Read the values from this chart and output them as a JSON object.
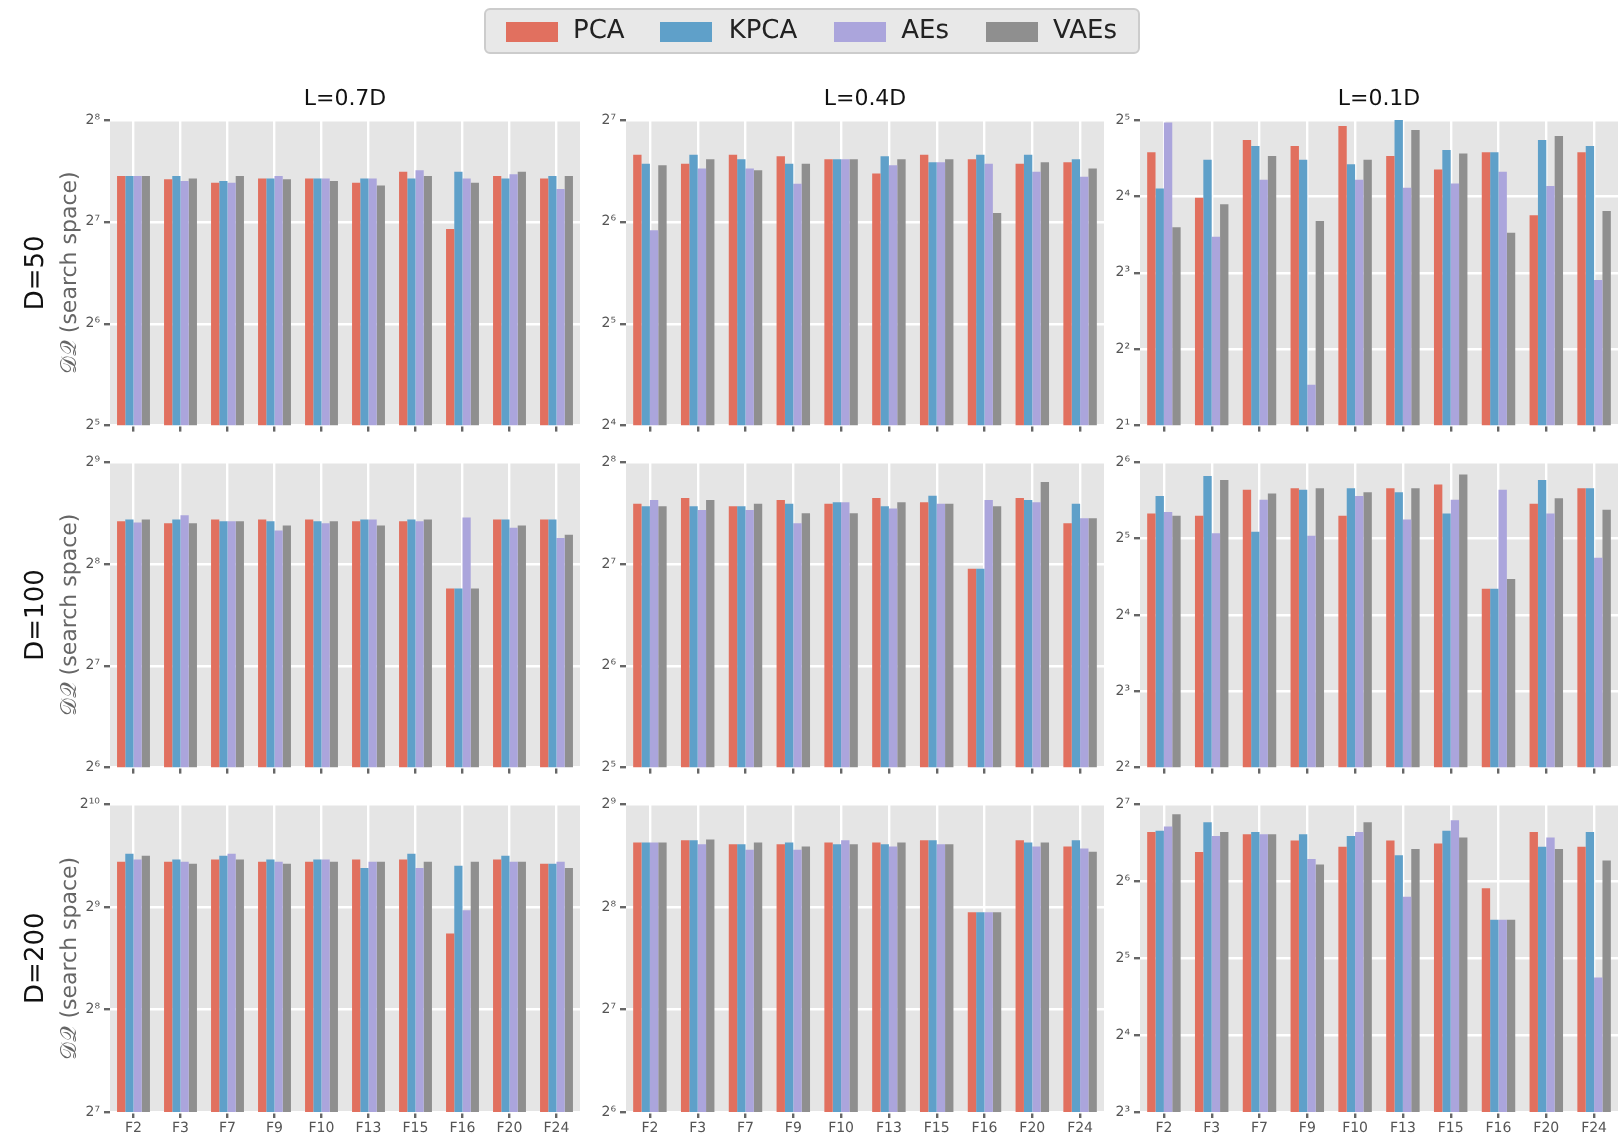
{
  "chart_data": [
    {
      "type": "bar",
      "title": "L=0.7D",
      "ylabel": "D=50\n𝒟𝒬 (search space)",
      "log": "y",
      "grid": true,
      "legend": "top",
      "tick_labels": "y",
      "ylim": [
        32,
        256
      ],
      "yticks": [
        {
          "value": 32,
          "label": "2⁵"
        },
        {
          "value": 64,
          "label": "2⁶"
        },
        {
          "value": 128,
          "label": "2⁷"
        },
        {
          "value": 256,
          "label": "2⁸"
        }
      ],
      "categories": [
        null,
        null,
        null,
        null,
        null,
        null,
        null,
        null,
        null,
        null
      ],
      "series": [
        {
          "name": "PCA",
          "color": "#e1705f",
          "values": [
            175,
            171,
            167,
            172,
            172,
            167,
            180,
            122,
            175,
            172
          ]
        },
        {
          "name": "KPCA",
          "color": "#5fa0c9",
          "values": [
            175,
            175,
            169,
            172,
            172,
            172,
            172,
            180,
            172,
            175
          ]
        },
        {
          "name": "AEs",
          "color": "#aba5dc",
          "values": [
            175,
            169,
            167,
            175,
            172,
            172,
            182,
            172,
            177,
            160
          ]
        },
        {
          "name": "VAEs",
          "color": "#8f8f8f",
          "values": [
            175,
            172,
            175,
            171,
            169,
            164,
            175,
            167,
            180,
            175
          ]
        }
      ]
    },
    {
      "type": "bar",
      "title": "L=0.4D",
      "log": "y",
      "grid": true,
      "tick_labels": "y",
      "ylim": [
        16,
        128
      ],
      "yticks": [
        {
          "value": 16,
          "label": "2⁴"
        },
        {
          "value": 32,
          "label": "2⁵"
        },
        {
          "value": 64,
          "label": "2⁶"
        },
        {
          "value": 128,
          "label": "2⁷"
        }
      ],
      "categories": [
        null,
        null,
        null,
        null,
        null,
        null,
        null,
        null,
        null,
        null
      ],
      "series": [
        {
          "color": "#e1705f",
          "values": [
            101,
            95,
            101,
            100,
            98,
            89,
            101,
            98,
            95,
            96
          ]
        },
        {
          "color": "#5fa0c9",
          "values": [
            95,
            101,
            98,
            95,
            98,
            100,
            96,
            101,
            101,
            98
          ]
        },
        {
          "color": "#aba5dc",
          "values": [
            60.5,
            92,
            92,
            83,
            98,
            94,
            96,
            95,
            90,
            87
          ]
        },
        {
          "color": "#8f8f8f",
          "values": [
            94,
            98,
            91,
            95,
            98,
            98,
            98,
            68,
            96,
            92
          ]
        }
      ]
    },
    {
      "type": "bar",
      "title": "L=0.1D",
      "log": "y",
      "grid": true,
      "tick_labels": "y",
      "ylim": [
        2,
        32
      ],
      "yticks": [
        {
          "value": 2,
          "label": "2¹"
        },
        {
          "value": 4,
          "label": "2²"
        },
        {
          "value": 8,
          "label": "2³"
        },
        {
          "value": 16,
          "label": "2⁴"
        },
        {
          "value": 32,
          "label": "2⁵"
        }
      ],
      "categories": [
        null,
        null,
        null,
        null,
        null,
        null,
        null,
        null,
        null,
        null
      ],
      "series": [
        {
          "color": "#e1705f",
          "values": [
            23.9,
            15.8,
            26.7,
            25.3,
            30.3,
            23.1,
            20.4,
            23.9,
            13.5,
            23.9
          ]
        },
        {
          "color": "#5fa0c9",
          "values": [
            17.2,
            22.3,
            25.3,
            22.3,
            21.4,
            32,
            24.4,
            23.9,
            26.7,
            25.3
          ]
        },
        {
          "color": "#aba5dc",
          "values": [
            31.3,
            11.1,
            18.6,
            2.9,
            18.6,
            17.3,
            18.0,
            20.0,
            17.6,
            7.5
          ]
        },
        {
          "color": "#8f8f8f",
          "values": [
            12.1,
            14.9,
            23.1,
            12.8,
            22.3,
            29.2,
            23.6,
            11.5,
            27.7,
            14.0
          ]
        }
      ]
    },
    {
      "type": "bar",
      "ylabel": "D=100\n𝒟𝒬 (search space)",
      "log": "y",
      "grid": true,
      "tick_labels": "y",
      "ylim": [
        64,
        512
      ],
      "yticks": [
        {
          "value": 64,
          "label": "2⁶"
        },
        {
          "value": 128,
          "label": "2⁷"
        },
        {
          "value": 256,
          "label": "2⁸"
        },
        {
          "value": 512,
          "label": "2⁹"
        }
      ],
      "categories": [
        null,
        null,
        null,
        null,
        null,
        null,
        null,
        null,
        null,
        null
      ],
      "series": [
        {
          "color": "#e1705f",
          "values": [
            343,
            338,
            347,
            347,
            347,
            343,
            343,
            217,
            347,
            347
          ]
        },
        {
          "color": "#5fa0c9",
          "values": [
            347,
            347,
            343,
            343,
            343,
            347,
            347,
            217,
            347,
            347
          ]
        },
        {
          "color": "#aba5dc",
          "values": [
            340,
            357,
            343,
            322,
            338,
            347,
            343,
            352,
            328,
            306
          ]
        },
        {
          "color": "#8f8f8f",
          "values": [
            347,
            338,
            343,
            333,
            343,
            333,
            347,
            217,
            333,
            313
          ]
        }
      ]
    },
    {
      "type": "bar",
      "log": "y",
      "grid": true,
      "tick_labels": "y",
      "ylim": [
        32,
        256
      ],
      "yticks": [
        {
          "value": 32,
          "label": "2⁵"
        },
        {
          "value": 64,
          "label": "2⁶"
        },
        {
          "value": 128,
          "label": "2⁷"
        },
        {
          "value": 256,
          "label": "2⁸"
        }
      ],
      "categories": [
        null,
        null,
        null,
        null,
        null,
        null,
        null,
        null,
        null,
        null
      ],
      "series": [
        {
          "color": "#e1705f",
          "values": [
            193,
            201,
            190,
            198,
            193,
            201,
            195,
            124,
            201,
            169
          ]
        },
        {
          "color": "#5fa0c9",
          "values": [
            190,
            190,
            190,
            193,
            195,
            190,
            204,
            124,
            198,
            193
          ]
        },
        {
          "color": "#aba5dc",
          "values": [
            198,
            185,
            185,
            169,
            195,
            187,
            193,
            198,
            195,
            175
          ]
        },
        {
          "color": "#8f8f8f",
          "values": [
            190,
            198,
            193,
            181,
            181,
            195,
            193,
            190,
            224,
            175
          ]
        }
      ]
    },
    {
      "type": "bar",
      "log": "y",
      "grid": true,
      "tick_labels": "y",
      "ylim": [
        4,
        64
      ],
      "yticks": [
        {
          "value": 4,
          "label": "2²"
        },
        {
          "value": 8,
          "label": "2³"
        },
        {
          "value": 16,
          "label": "2⁴"
        },
        {
          "value": 32,
          "label": "2⁵"
        },
        {
          "value": 64,
          "label": "2⁶"
        }
      ],
      "categories": [
        null,
        null,
        null,
        null,
        null,
        null,
        null,
        null,
        null,
        null
      ],
      "series": [
        {
          "color": "#e1705f",
          "values": [
            40.2,
            39.4,
            49.9,
            50.6,
            39.4,
            50.6,
            52.3,
            20.3,
            44.0,
            50.6
          ]
        },
        {
          "color": "#5fa0c9",
          "values": [
            47.2,
            56.5,
            34.1,
            49.9,
            50.6,
            48.8,
            40.2,
            20.3,
            54.6,
            50.6
          ]
        },
        {
          "color": "#aba5dc",
          "values": [
            40.8,
            33.6,
            45.6,
            32.9,
            47.2,
            38.1,
            45.6,
            49.9,
            40.2,
            26.9
          ]
        },
        {
          "color": "#8f8f8f",
          "values": [
            39.4,
            54.6,
            48.2,
            50.6,
            48.8,
            50.6,
            57.3,
            22.2,
            46.2,
            41.6
          ]
        }
      ]
    },
    {
      "type": "bar",
      "ylabel": "D=200\n𝒟𝒬 (search space)",
      "log": "y",
      "grid": true,
      "ylim": [
        128,
        1024
      ],
      "yticks": [
        {
          "value": 128,
          "label": "2⁷"
        },
        {
          "value": 256,
          "label": "2⁸"
        },
        {
          "value": 512,
          "label": "2⁹"
        },
        {
          "value": 1024,
          "label": "2¹⁰"
        }
      ],
      "categories": [
        "F2",
        "F3",
        "F7",
        "F9",
        "F10",
        "F13",
        "F15",
        "F16",
        "F20",
        "F24"
      ],
      "series": [
        {
          "color": "#e1705f",
          "values": [
            695,
            695,
            705,
            695,
            695,
            705,
            705,
            428,
            705,
            685
          ]
        },
        {
          "color": "#5fa0c9",
          "values": [
            734,
            705,
            724,
            705,
            705,
            666,
            734,
            676,
            724,
            685
          ]
        },
        {
          "color": "#aba5dc",
          "values": [
            705,
            695,
            734,
            695,
            705,
            695,
            666,
            501,
            695,
            695
          ]
        },
        {
          "color": "#8f8f8f",
          "values": [
            724,
            685,
            705,
            685,
            695,
            695,
            695,
            695,
            695,
            666
          ]
        }
      ]
    },
    {
      "type": "bar",
      "log": "y",
      "grid": true,
      "ylim": [
        64,
        512
      ],
      "yticks": [
        {
          "value": 64,
          "label": "2⁶"
        },
        {
          "value": 128,
          "label": "2⁷"
        },
        {
          "value": 256,
          "label": "2⁸"
        },
        {
          "value": 512,
          "label": "2⁹"
        }
      ],
      "categories": [
        "F2",
        "F3",
        "F7",
        "F9",
        "F10",
        "F13",
        "F15",
        "F16",
        "F20",
        "F24"
      ],
      "series": [
        {
          "color": "#e1705f",
          "values": [
            396,
            402,
            391,
            391,
            396,
            396,
            402,
            247,
            402,
            385
          ]
        },
        {
          "color": "#5fa0c9",
          "values": [
            396,
            402,
            391,
            396,
            391,
            391,
            402,
            247,
            396,
            402
          ]
        },
        {
          "color": "#aba5dc",
          "values": [
            396,
            391,
            377,
            377,
            402,
            385,
            391,
            247,
            385,
            380
          ]
        },
        {
          "color": "#8f8f8f",
          "values": [
            396,
            404,
            396,
            385,
            391,
            396,
            391,
            247,
            396,
            372
          ]
        }
      ]
    },
    {
      "type": "bar",
      "log": "y",
      "grid": true,
      "ylim": [
        8,
        128
      ],
      "yticks": [
        {
          "value": 8,
          "label": "2³"
        },
        {
          "value": 16,
          "label": "2⁴"
        },
        {
          "value": 32,
          "label": "2⁵"
        },
        {
          "value": 64,
          "label": "2⁶"
        },
        {
          "value": 128,
          "label": "2⁷"
        }
      ],
      "categories": [
        "F2",
        "F3",
        "F7",
        "F9",
        "F10",
        "F13",
        "F15",
        "F16",
        "F20",
        "F24"
      ],
      "series": [
        {
          "color": "#e1705f",
          "values": [
            99.7,
            83.3,
            97.7,
            92.4,
            87.4,
            92.4,
            89.9,
            60.1,
            99.7,
            87.4
          ]
        },
        {
          "color": "#5fa0c9",
          "values": [
            101,
            109,
            99.7,
            97.7,
            96.3,
            81.0,
            101,
            45.3,
            87.4,
            99.7
          ]
        },
        {
          "color": "#aba5dc",
          "values": [
            105,
            96.3,
            97.7,
            78.2,
            99.7,
            55.7,
            111,
            45.3,
            95.0,
            26.9
          ]
        },
        {
          "color": "#8f8f8f",
          "values": [
            117,
            99.7,
            97.7,
            74.5,
            109,
            85.6,
            95.0,
            45.3,
            85.6,
            77.2
          ]
        }
      ]
    }
  ]
}
